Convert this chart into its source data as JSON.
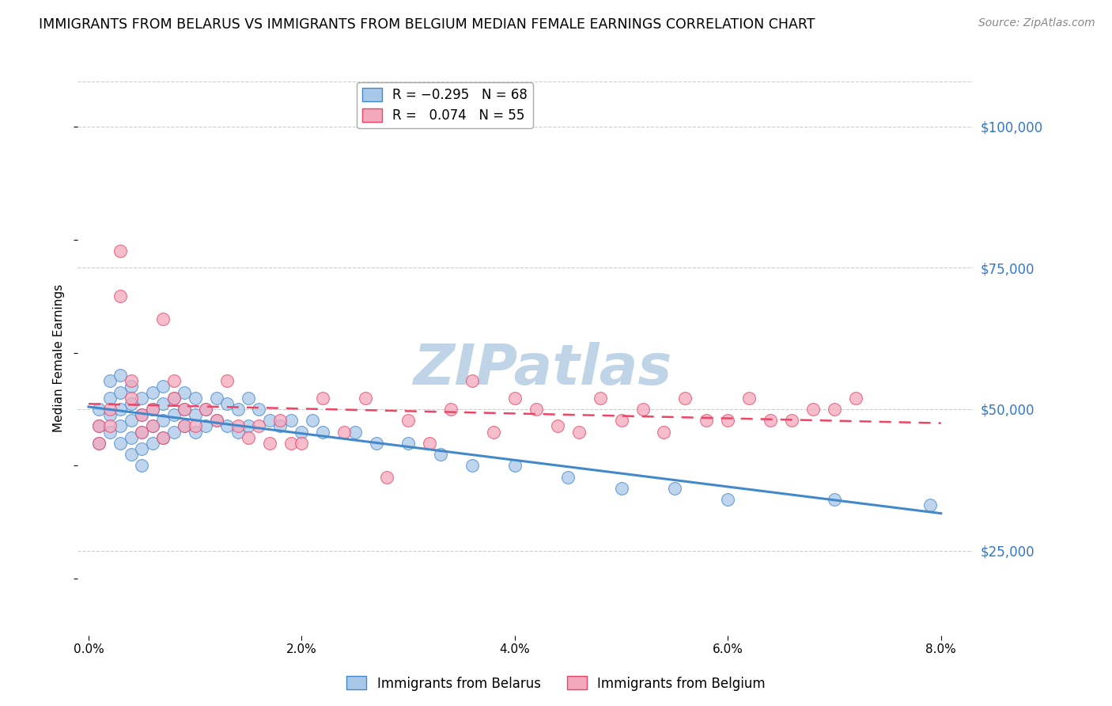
{
  "title": "IMMIGRANTS FROM BELARUS VS IMMIGRANTS FROM BELGIUM MEDIAN FEMALE EARNINGS CORRELATION CHART",
  "source": "Source: ZipAtlas.com",
  "ylabel": "Median Female Earnings",
  "xlabel_ticks": [
    "0.0%",
    "2.0%",
    "4.0%",
    "6.0%",
    "8.0%"
  ],
  "xlabel_vals": [
    0.0,
    0.02,
    0.04,
    0.06,
    0.08
  ],
  "ylabel_ticks": [
    "$25,000",
    "$50,000",
    "$75,000",
    "$100,000"
  ],
  "ylabel_vals": [
    25000,
    50000,
    75000,
    100000
  ],
  "xlim": [
    -0.001,
    0.083
  ],
  "ylim": [
    10000,
    108000
  ],
  "belarus_R": -0.295,
  "belarus_N": 68,
  "belgium_R": 0.074,
  "belgium_N": 55,
  "belarus_color": "#a8c8e8",
  "belgium_color": "#f4a8bc",
  "trendline_belarus_color": "#4488cc",
  "trendline_belgium_color": "#ee4466",
  "background_color": "#ffffff",
  "grid_color": "#cccccc",
  "watermark": "ZIPatlas",
  "watermark_color": "#c0d4e8",
  "legend_label_belarus": "Immigrants from Belarus",
  "legend_label_belgium": "Immigrants from Belgium",
  "title_fontsize": 12.5,
  "axis_label_fontsize": 11,
  "tick_fontsize": 11,
  "legend_fontsize": 12,
  "source_fontsize": 10,
  "watermark_fontsize": 52,
  "belarus_x": [
    0.001,
    0.001,
    0.001,
    0.002,
    0.002,
    0.002,
    0.002,
    0.003,
    0.003,
    0.003,
    0.003,
    0.003,
    0.004,
    0.004,
    0.004,
    0.004,
    0.004,
    0.005,
    0.005,
    0.005,
    0.005,
    0.005,
    0.006,
    0.006,
    0.006,
    0.006,
    0.007,
    0.007,
    0.007,
    0.007,
    0.008,
    0.008,
    0.008,
    0.009,
    0.009,
    0.009,
    0.01,
    0.01,
    0.01,
    0.011,
    0.011,
    0.012,
    0.012,
    0.013,
    0.013,
    0.014,
    0.014,
    0.015,
    0.015,
    0.016,
    0.017,
    0.018,
    0.019,
    0.02,
    0.021,
    0.022,
    0.025,
    0.027,
    0.03,
    0.033,
    0.036,
    0.04,
    0.045,
    0.05,
    0.055,
    0.06,
    0.07,
    0.079
  ],
  "belarus_y": [
    50000,
    47000,
    44000,
    55000,
    52000,
    49000,
    46000,
    56000,
    53000,
    50000,
    47000,
    44000,
    54000,
    51000,
    48000,
    45000,
    42000,
    52000,
    49000,
    46000,
    43000,
    40000,
    53000,
    50000,
    47000,
    44000,
    54000,
    51000,
    48000,
    45000,
    52000,
    49000,
    46000,
    53000,
    50000,
    47000,
    52000,
    49000,
    46000,
    50000,
    47000,
    52000,
    48000,
    51000,
    47000,
    50000,
    46000,
    52000,
    47000,
    50000,
    48000,
    47000,
    48000,
    46000,
    48000,
    46000,
    46000,
    44000,
    44000,
    42000,
    40000,
    40000,
    38000,
    36000,
    36000,
    34000,
    34000,
    33000
  ],
  "belgium_x": [
    0.001,
    0.001,
    0.002,
    0.002,
    0.003,
    0.003,
    0.004,
    0.004,
    0.005,
    0.005,
    0.006,
    0.006,
    0.007,
    0.007,
    0.008,
    0.008,
    0.009,
    0.009,
    0.01,
    0.011,
    0.012,
    0.013,
    0.014,
    0.015,
    0.016,
    0.017,
    0.018,
    0.019,
    0.02,
    0.022,
    0.024,
    0.026,
    0.028,
    0.03,
    0.032,
    0.034,
    0.036,
    0.038,
    0.04,
    0.042,
    0.044,
    0.046,
    0.048,
    0.05,
    0.052,
    0.054,
    0.056,
    0.058,
    0.06,
    0.062,
    0.064,
    0.066,
    0.068,
    0.07,
    0.072
  ],
  "belgium_y": [
    47000,
    44000,
    50000,
    47000,
    70000,
    78000,
    55000,
    52000,
    49000,
    46000,
    50000,
    47000,
    66000,
    45000,
    55000,
    52000,
    50000,
    47000,
    47000,
    50000,
    48000,
    55000,
    47000,
    45000,
    47000,
    44000,
    48000,
    44000,
    44000,
    52000,
    46000,
    52000,
    38000,
    48000,
    44000,
    50000,
    55000,
    46000,
    52000,
    50000,
    47000,
    46000,
    52000,
    48000,
    50000,
    46000,
    52000,
    48000,
    48000,
    52000,
    48000,
    48000,
    50000,
    50000,
    52000
  ]
}
